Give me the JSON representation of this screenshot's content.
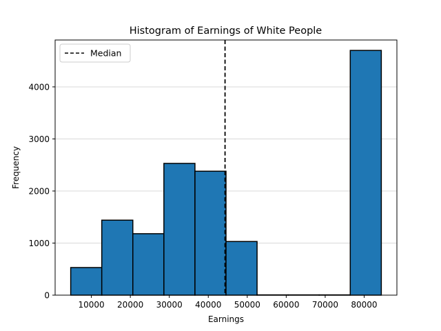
{
  "chart_data": {
    "type": "bar",
    "title": "Histogram of Earnings of White People",
    "xlabel": "Earnings",
    "ylabel": "Frequency",
    "xlim": [
      700,
      88400
    ],
    "ylim": [
      0,
      4900
    ],
    "xticks": [
      10000,
      20000,
      30000,
      40000,
      50000,
      60000,
      70000,
      80000
    ],
    "yticks": [
      0,
      1000,
      2000,
      3000,
      4000
    ],
    "grid": "y",
    "bar_color": "#1f77b4",
    "bins": [
      {
        "start": 4700,
        "end": 12670,
        "value": 530
      },
      {
        "start": 12670,
        "end": 20640,
        "value": 1440
      },
      {
        "start": 20640,
        "end": 28610,
        "value": 1180
      },
      {
        "start": 28610,
        "end": 36580,
        "value": 2530
      },
      {
        "start": 36580,
        "end": 44550,
        "value": 2380
      },
      {
        "start": 44550,
        "end": 52520,
        "value": 1030
      },
      {
        "start": 52520,
        "end": 60490,
        "value": 5
      },
      {
        "start": 60490,
        "end": 68460,
        "value": 5
      },
      {
        "start": 68460,
        "end": 76430,
        "value": 5
      },
      {
        "start": 76430,
        "end": 84400,
        "value": 4700
      }
    ],
    "median": {
      "x": 44300,
      "label": "Median",
      "color": "#000000",
      "style": "dashed"
    },
    "legend": {
      "position": "top-left",
      "entries": [
        "Median"
      ]
    }
  }
}
